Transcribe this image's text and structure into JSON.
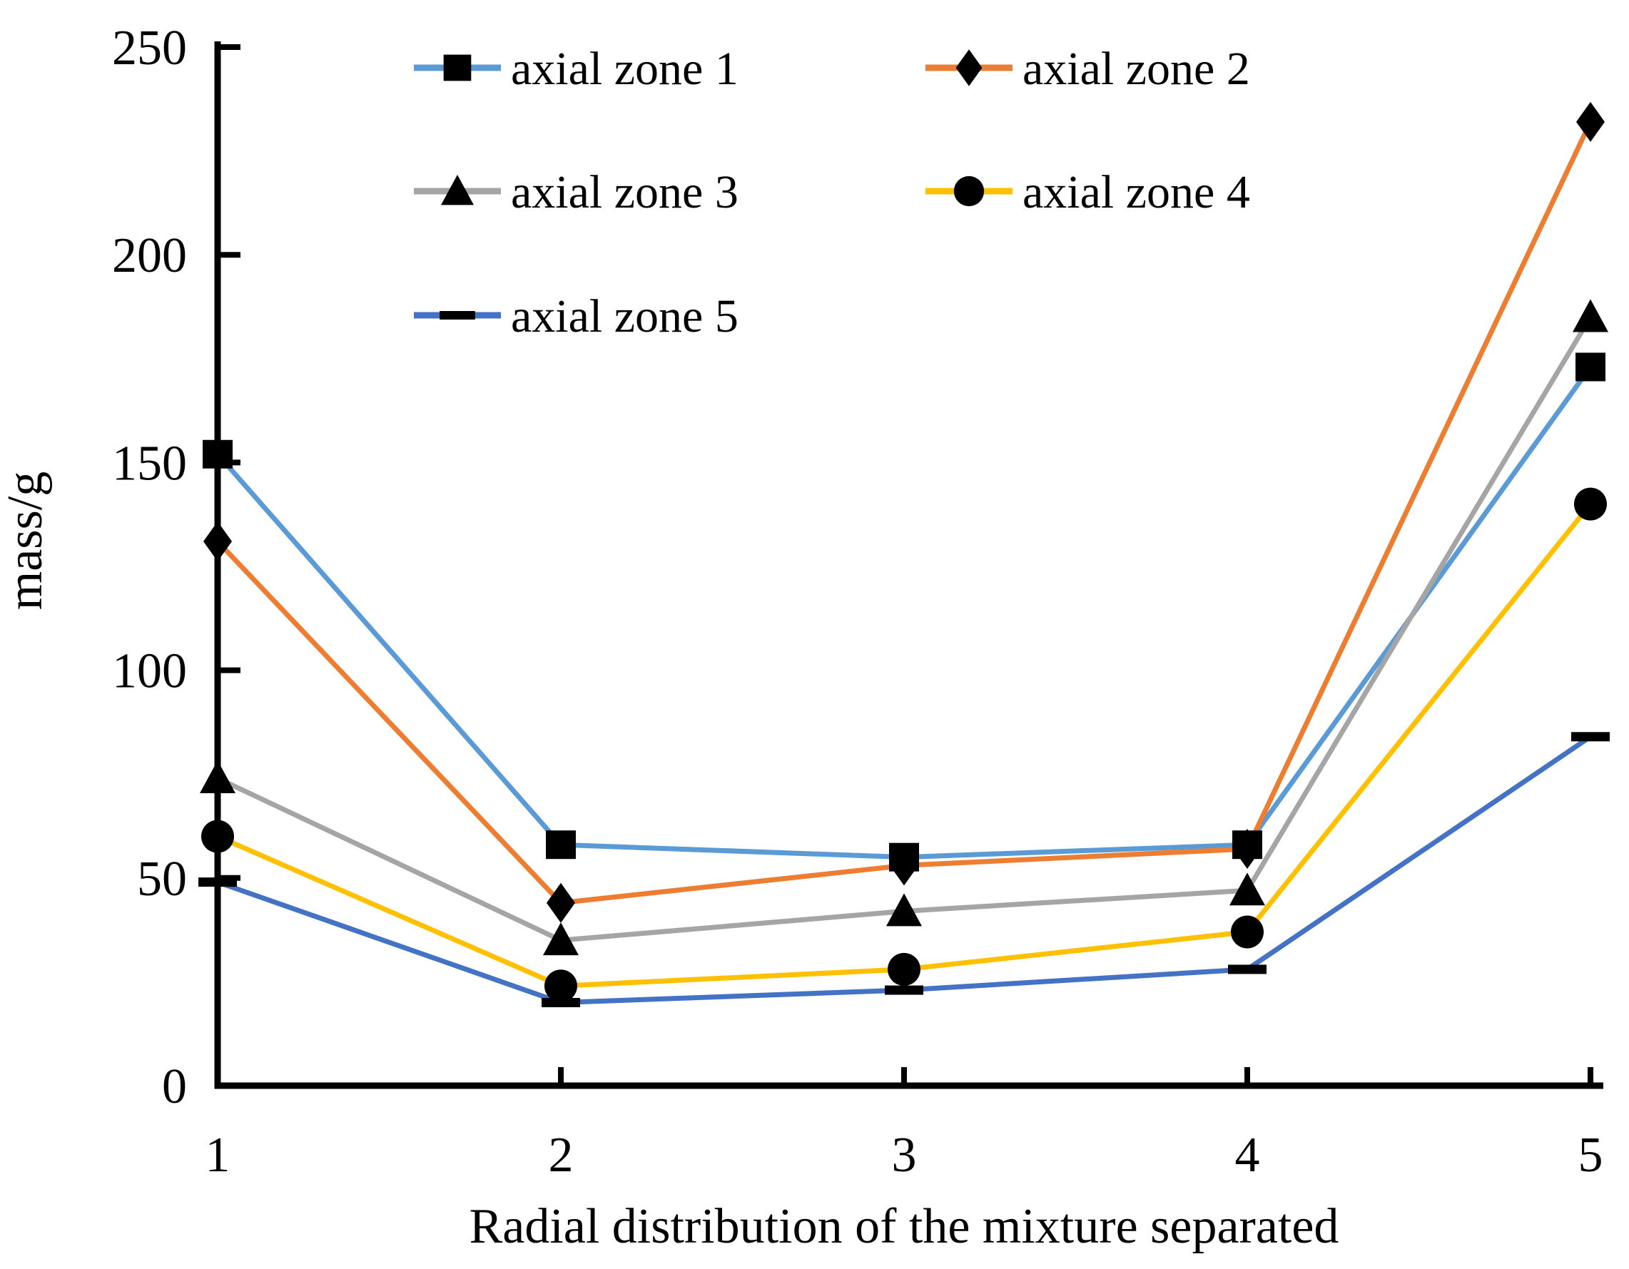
{
  "chart_data": {
    "type": "line",
    "x": [
      1,
      2,
      3,
      4,
      5
    ],
    "x_tick_labels": [
      "1",
      "2",
      "3",
      "4",
      "5"
    ],
    "y_ticks": [
      0,
      50,
      100,
      150,
      200,
      250
    ],
    "ylim": [
      0,
      250
    ],
    "xlabel": "Radial distribution of the mixture separated",
    "ylabel": "mass/g",
    "grid": false,
    "legend_position": "inside-top-left",
    "axis_color": "#000000",
    "marker_color": "#000000",
    "series": [
      {
        "name": "axial zone 1",
        "color": "#5B9BD5",
        "marker": "square",
        "values": [
          152,
          58,
          55,
          58,
          173
        ]
      },
      {
        "name": "axial zone 2",
        "color": "#ED7D31",
        "marker": "diamond",
        "values": [
          131,
          44,
          53,
          57,
          232
        ]
      },
      {
        "name": "axial zone 3",
        "color": "#A5A5A5",
        "marker": "triangle",
        "values": [
          74,
          35,
          42,
          47,
          185
        ]
      },
      {
        "name": "axial zone 4",
        "color": "#FFC000",
        "marker": "circle",
        "values": [
          60,
          24,
          28,
          37,
          140
        ]
      },
      {
        "name": "axial zone 5",
        "color": "#4472C4",
        "marker": "dash",
        "values": [
          49,
          20,
          23,
          28,
          84
        ]
      }
    ]
  }
}
